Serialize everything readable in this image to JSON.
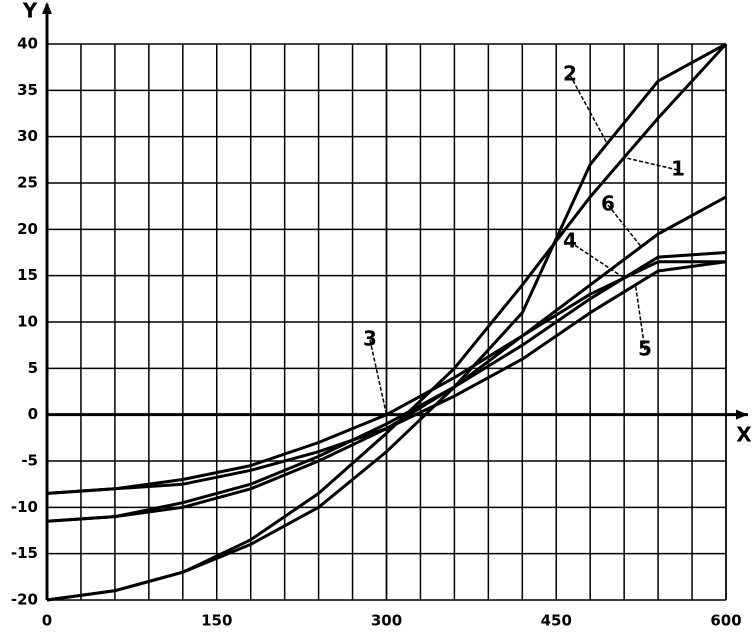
{
  "chart_data": {
    "type": "line",
    "x_label": "X",
    "y_label": "Y",
    "x": [
      0,
      60,
      120,
      180,
      240,
      300,
      360,
      420,
      480,
      540,
      600
    ],
    "series": [
      {
        "name": "1",
        "color": "#000000",
        "values": [
          -20,
          -19,
          -17,
          -13.5,
          -8.5,
          -2,
          5,
          14,
          23.5,
          32,
          40
        ]
      },
      {
        "name": "2",
        "color": "#000000",
        "values": [
          -20,
          -19,
          -17,
          -14,
          -10,
          -4,
          3,
          11,
          27,
          36,
          40
        ]
      },
      {
        "name": "3",
        "color": "#000000",
        "values": [
          -8.5,
          -8,
          -7,
          -5.5,
          -3,
          0,
          4,
          8.5,
          13,
          16.5,
          16.5
        ]
      },
      {
        "name": "4",
        "color": "#000000",
        "values": [
          -11.5,
          -11,
          -9.5,
          -7.5,
          -4.5,
          -1,
          3,
          7.5,
          12.5,
          17,
          17.5
        ]
      },
      {
        "name": "5",
        "color": "#000000",
        "values": [
          -8.5,
          -8,
          -7.5,
          -6,
          -4,
          -1.5,
          2,
          6,
          11,
          15.5,
          16.5
        ]
      },
      {
        "name": "6",
        "color": "#000000",
        "values": [
          -11.5,
          -11,
          -10,
          -8,
          -5,
          -1.5,
          3,
          8.5,
          14,
          19.5,
          23.5
        ]
      }
    ],
    "xlim": [
      0,
      600
    ],
    "xticks": [
      0,
      150,
      300,
      450,
      600
    ],
    "ylim": [
      -20,
      40
    ],
    "yticks": [
      -20,
      -15,
      -10,
      -5,
      0,
      5,
      10,
      15,
      20,
      25,
      30,
      35,
      40
    ],
    "grid": true
  }
}
